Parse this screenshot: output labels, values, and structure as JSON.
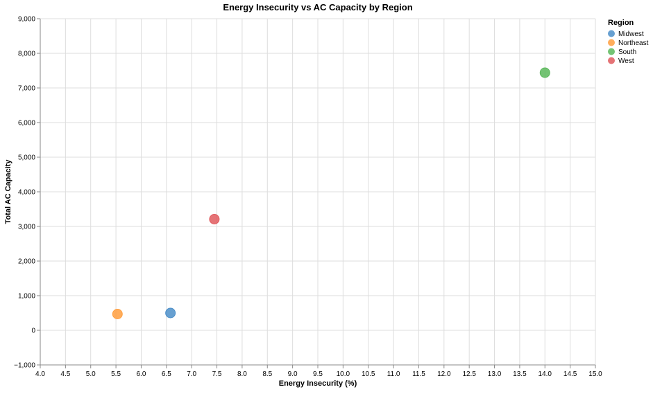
{
  "chart_data": {
    "type": "scatter",
    "title": "Energy Insecurity vs AC Capacity by Region",
    "xlabel": "Energy Insecurity (%)",
    "ylabel": "Total AC Capacity",
    "xlim": [
      4.0,
      15.0
    ],
    "ylim": [
      -1000,
      9000
    ],
    "x_ticks": [
      "4.0",
      "4.5",
      "5.0",
      "5.5",
      "6.0",
      "6.5",
      "7.0",
      "7.5",
      "8.0",
      "8.5",
      "9.0",
      "9.5",
      "10.0",
      "10.5",
      "11.0",
      "11.5",
      "12.0",
      "12.5",
      "13.0",
      "13.5",
      "14.0",
      "14.5",
      "15.0"
    ],
    "y_ticks": [
      "−1,000",
      "0",
      "1,000",
      "2,000",
      "3,000",
      "4,000",
      "5,000",
      "6,000",
      "7,000",
      "8,000",
      "9,000"
    ],
    "grid": true,
    "legend": {
      "title": "Region",
      "placement": "top-right",
      "entries": [
        "Midwest",
        "Northeast",
        "South",
        "West"
      ]
    },
    "series": [
      {
        "name": "Midwest",
        "color": "#4c8fc9",
        "points": [
          {
            "x": 6.58,
            "y": 500
          }
        ]
      },
      {
        "name": "Northeast",
        "color": "#ff9f3f",
        "points": [
          {
            "x": 5.53,
            "y": 470
          }
        ]
      },
      {
        "name": "South",
        "color": "#5cb85c",
        "points": [
          {
            "x": 14.0,
            "y": 7440
          }
        ]
      },
      {
        "name": "West",
        "color": "#e05a5e",
        "points": [
          {
            "x": 7.45,
            "y": 3210
          }
        ]
      }
    ]
  }
}
